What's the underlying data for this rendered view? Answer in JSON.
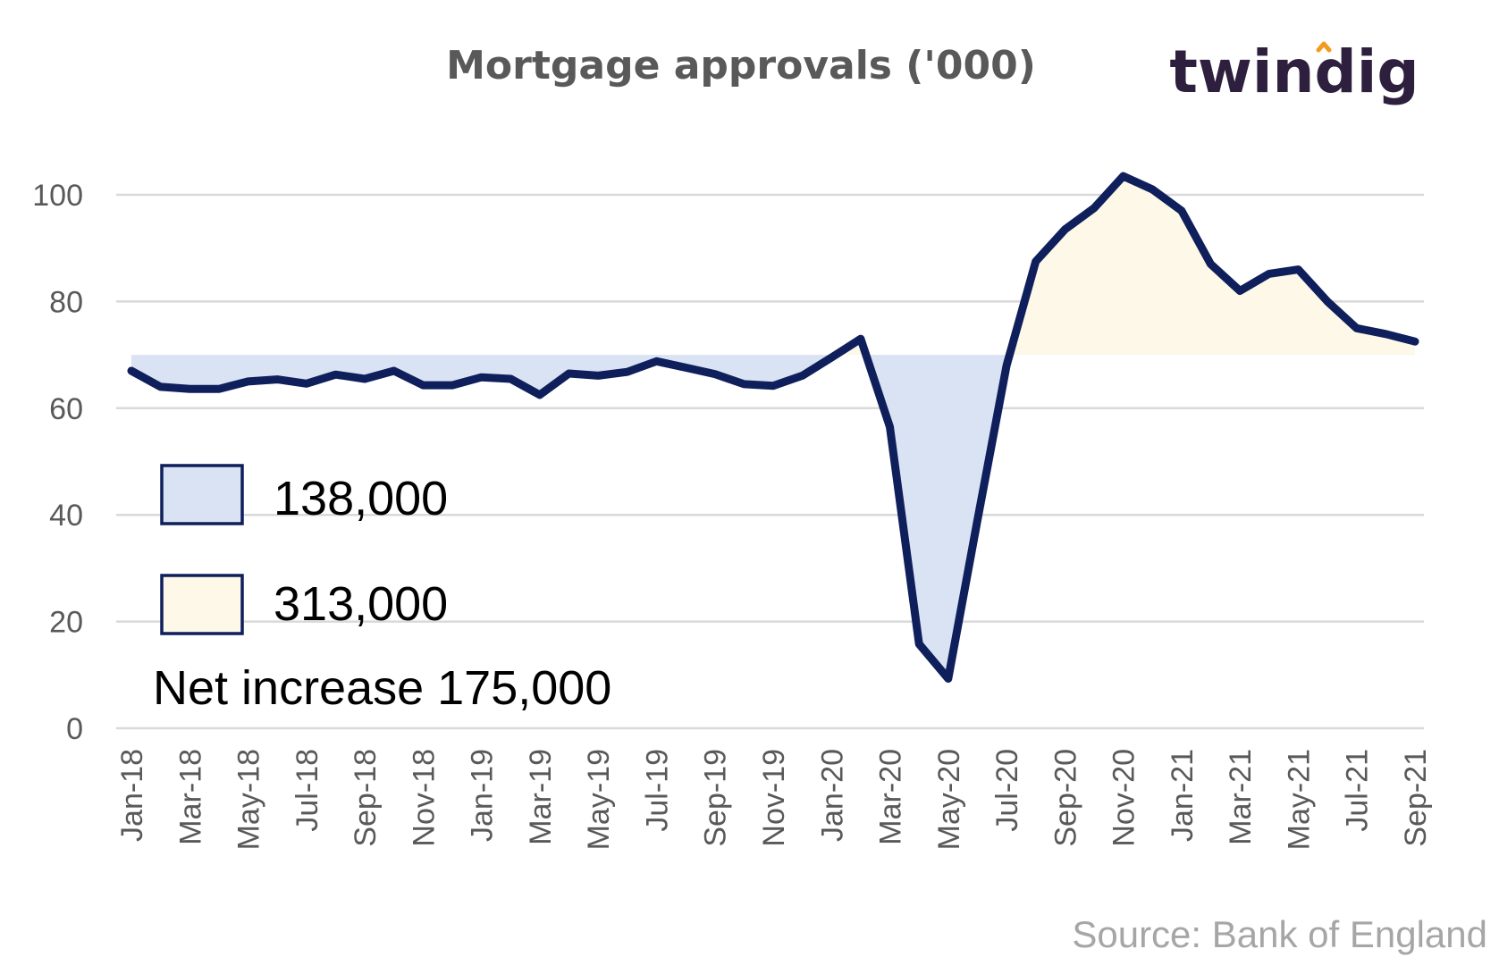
{
  "title": "Mortgage approvals ('000)",
  "logo": "twindig",
  "source": "Source: Bank of England",
  "legend": [
    {
      "label": "138,000",
      "color": "#dae3f3"
    },
    {
      "label": "313,000",
      "color": "#fdf8e7"
    }
  ],
  "net_label": "Net increase 175,000",
  "colors": {
    "line": "#0f1f5c",
    "deficit_fill": "#dae3f3",
    "surplus_fill": "#fdf8e7",
    "grid": "#d9d9d9",
    "logo_accent": "#f29b1d"
  },
  "chart_data": {
    "type": "line",
    "title": "Mortgage approvals ('000)",
    "xlabel": "",
    "ylabel": "",
    "ylim": [
      0,
      100
    ],
    "yticks": [
      0,
      20,
      40,
      60,
      80,
      100
    ],
    "grid": true,
    "baseline": 70,
    "x_tick_labels": [
      "Jan-18",
      "Mar-18",
      "May-18",
      "Jul-18",
      "Sep-18",
      "Nov-18",
      "Jan-19",
      "Mar-19",
      "May-19",
      "Jul-19",
      "Sep-19",
      "Nov-19",
      "Jan-20",
      "Mar-20",
      "May-20",
      "Jul-20",
      "Sep-20",
      "Nov-20",
      "Jan-21",
      "Mar-21",
      "May-21",
      "Jul-21",
      "Sep-21"
    ],
    "categories": [
      "Jan-18",
      "Feb-18",
      "Mar-18",
      "Apr-18",
      "May-18",
      "Jun-18",
      "Jul-18",
      "Aug-18",
      "Sep-18",
      "Oct-18",
      "Nov-18",
      "Dec-18",
      "Jan-19",
      "Feb-19",
      "Mar-19",
      "Apr-19",
      "May-19",
      "Jun-19",
      "Jul-19",
      "Aug-19",
      "Sep-19",
      "Oct-19",
      "Nov-19",
      "Dec-19",
      "Jan-20",
      "Feb-20",
      "Mar-20",
      "Apr-20",
      "May-20",
      "Jun-20",
      "Jul-20",
      "Aug-20",
      "Sep-20",
      "Oct-20",
      "Nov-20",
      "Dec-20",
      "Jan-21",
      "Feb-21",
      "Mar-21",
      "Apr-21",
      "May-21",
      "Jun-21",
      "Jul-21",
      "Aug-21",
      "Sep-21"
    ],
    "series": [
      {
        "values": [
          67.0,
          64.0,
          63.6,
          63.6,
          65.0,
          65.4,
          64.6,
          66.3,
          65.5,
          67.0,
          64.3,
          64.3,
          65.8,
          65.5,
          62.5,
          66.5,
          66.1,
          66.8,
          68.8,
          67.6,
          66.4,
          64.5,
          64.2,
          66.1,
          69.5,
          73.0,
          56.5,
          15.8,
          9.3,
          39.0,
          68.0,
          87.5,
          93.5,
          97.5,
          103.5,
          101.0,
          97.0,
          87.0,
          82.0,
          85.2,
          86.0,
          80.0,
          75.0,
          73.9,
          72.5
        ]
      }
    ]
  }
}
